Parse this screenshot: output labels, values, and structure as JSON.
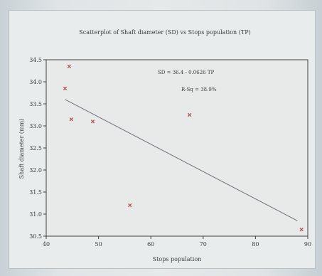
{
  "chart_data": {
    "type": "scatter",
    "title": "Scatterplot of Shaft diameter (SD) vs Stops population (TP)",
    "xlabel": "Stops population",
    "ylabel": "Shaft diameter (mm)",
    "xlim": [
      40,
      90
    ],
    "ylim": [
      30.5,
      34.5
    ],
    "xticks": [
      40,
      50,
      60,
      70,
      80,
      90
    ],
    "yticks": [
      30.5,
      31.0,
      31.5,
      32.0,
      32.5,
      33.0,
      33.5,
      34.0,
      34.5
    ],
    "points": [
      {
        "x": 43.6,
        "y": 33.85
      },
      {
        "x": 44.4,
        "y": 34.35
      },
      {
        "x": 44.8,
        "y": 33.15
      },
      {
        "x": 48.9,
        "y": 33.1
      },
      {
        "x": 56.0,
        "y": 31.2
      },
      {
        "x": 67.4,
        "y": 33.25
      },
      {
        "x": 88.8,
        "y": 30.65
      }
    ],
    "fit": {
      "x": [
        43.6,
        88.0
      ],
      "y": [
        33.6,
        30.85
      ]
    },
    "annotations": [
      "SD = 36.4 - 0.0626 TP",
      "R-Sq = 38.9%"
    ],
    "grid": false,
    "colors": {
      "points": "#b55a5a",
      "line": "#6f6f7a",
      "axis": "#3f3f3f"
    }
  }
}
